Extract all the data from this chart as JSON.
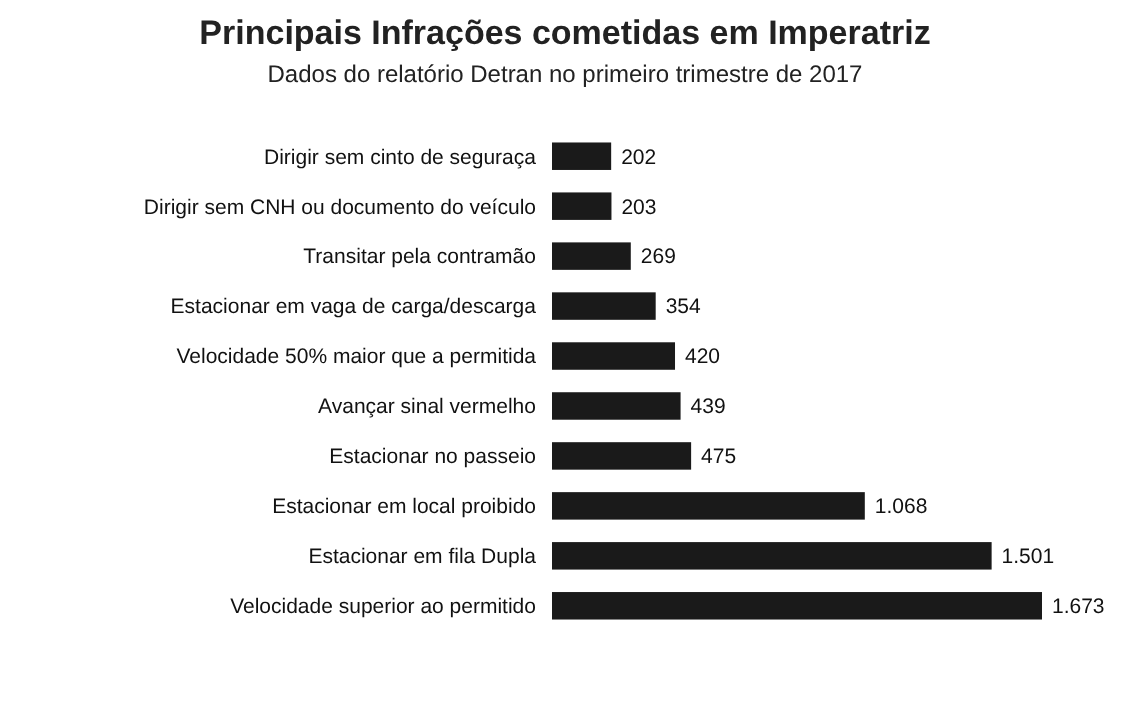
{
  "chart_data": {
    "type": "bar",
    "orientation": "horizontal",
    "title": "Principais Infrações cometidas em Imperatriz",
    "subtitle": "Dados do relatório Detran no primeiro trimestre de 2017",
    "categories": [
      "Dirigir sem cinto de seguraça",
      "Dirigir sem CNH ou documento do veículo",
      "Transitar pela contramão",
      "Estacionar em vaga de carga/descarga",
      "Velocidade 50% maior que a permitida",
      "Avançar sinal vermelho",
      "Estacionar no passeio",
      "Estacionar em local proibido",
      "Estacionar em fila Dupla",
      "Velocidade superior ao permitido"
    ],
    "values": [
      202,
      203,
      269,
      354,
      420,
      439,
      475,
      1068,
      1501,
      1673
    ],
    "value_labels": [
      "202",
      "203",
      "269",
      "354",
      "420",
      "439",
      "475",
      "1.068",
      "1.501",
      "1.673"
    ],
    "color": "#1a1a1a"
  }
}
